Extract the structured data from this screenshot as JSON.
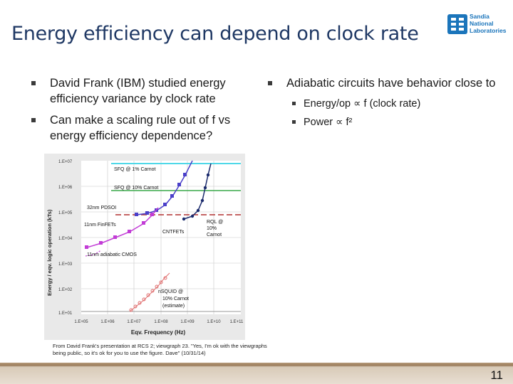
{
  "slide": {
    "title": "Energy efficiency can depend on clock rate",
    "page_number": "11"
  },
  "logo": {
    "lines": [
      "Sandia",
      "National",
      "Laboratories"
    ]
  },
  "left_bullets": [
    "David Frank (IBM) studied energy efficiency variance by clock rate",
    "Can make a scaling rule out of f vs energy efficiency dependence?"
  ],
  "right_bullets": {
    "main": "Adiabatic circuits have behavior close to",
    "subs": [
      "Energy/op ∝ f (clock rate)",
      "Power ∝ f²"
    ]
  },
  "figure": {
    "ylabel": "Energy / eqv. logic operation (kTs)",
    "xlabel": "Eqv. Frequency (Hz)",
    "yticks": [
      "1.E+07",
      "1.E+06",
      "1.E+05",
      "1.E+04",
      "1.E+03",
      "1.E+02",
      "1.E+01"
    ],
    "xticks": [
      "1.E+05",
      "1.E+06",
      "1.E+07",
      "1.E+08",
      "1.E+09",
      "1.E+10",
      "1.E+11"
    ],
    "annotations": {
      "sfq1": "SFQ @ 1% Carnot",
      "sfq10": "SFQ @ 10% Carnot",
      "pdsoi": "32nm PDSOI",
      "finfet": "11nm FinFETs",
      "cntfet": "CNTFETs",
      "rql1": "RQL @",
      "rql2": "10%",
      "rql3": "Carnot",
      "adiabatic": "11nm adiabatic CMOS",
      "nsquid1": "nSQUID @",
      "nsquid2": "10% Carnot",
      "nsquid3": "(estimate)"
    }
  },
  "credit": "From David Frank's presentation at RCS 2; viewgraph 23. \"Yes, I'm ok with the viewgraphs being public, so it's ok for you to use the figure. Dave\" (10/31/14)",
  "colors": {
    "title": "#1f3864",
    "footer": "#9a7b5a",
    "pdsoi": "#4a3fc9",
    "finfet": "#c23cd6",
    "cntfet": "#1a2a6c",
    "nsquid": "#e07070"
  }
}
